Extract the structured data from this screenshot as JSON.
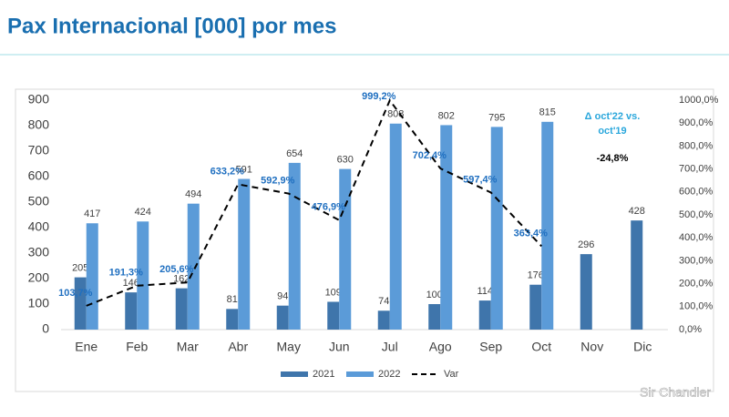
{
  "chart_data": {
    "type": "bar",
    "title": "Pax Internacional [000] por mes",
    "categories": [
      "Ene",
      "Feb",
      "Mar",
      "Abr",
      "May",
      "Jun",
      "Jul",
      "Ago",
      "Sep",
      "Oct",
      "Nov",
      "Dic"
    ],
    "series": [
      {
        "name": "2021",
        "type": "bar",
        "color": "#3f75ab",
        "values": [
          205,
          146,
          162,
          81,
          94,
          109,
          74,
          100,
          114,
          176,
          296,
          428
        ]
      },
      {
        "name": "2022",
        "type": "bar",
        "color": "#5b9bd8",
        "values": [
          417,
          424,
          494,
          591,
          654,
          630,
          808,
          802,
          795,
          815,
          null,
          null
        ]
      },
      {
        "name": "Var",
        "type": "line",
        "axis": "y2",
        "color": "#000000",
        "values": [
          103.7,
          191.3,
          205.6,
          633.2,
          592.9,
          476.9,
          999.2,
          702.4,
          597.4,
          363.4,
          null,
          null
        ],
        "value_labels": [
          "103,7%",
          "191,3%",
          "205,6%",
          "633,2%",
          "592,9%",
          "476,9%",
          "999,2%",
          "702,4%",
          "597,4%",
          "363,4%",
          null,
          null
        ]
      }
    ],
    "ylim": [
      0,
      900
    ],
    "yticks": [
      0,
      100,
      200,
      300,
      400,
      500,
      600,
      700,
      800,
      900
    ],
    "y2lim": [
      0,
      1000
    ],
    "y2ticks": [
      {
        "value": 0,
        "label": "0,0%"
      },
      {
        "value": 100,
        "label": "100,0%"
      },
      {
        "value": 200,
        "label": "200,0%"
      },
      {
        "value": 300,
        "label": "300,0%"
      },
      {
        "value": 400,
        "label": "400,0%"
      },
      {
        "value": 500,
        "label": "500,0%"
      },
      {
        "value": 600,
        "label": "600,0%"
      },
      {
        "value": 700,
        "label": "700,0%"
      },
      {
        "value": 800,
        "label": "800,0%"
      },
      {
        "value": 900,
        "label": "900,0%"
      },
      {
        "value": 1000,
        "label": "1000,0%"
      }
    ],
    "annotation": [
      "Δ oct'22 vs.",
      "oct'19"
    ],
    "annotation_value": "-24,8%",
    "legend": "bottom",
    "grid": false,
    "watermark": "Sir Chandler"
  }
}
